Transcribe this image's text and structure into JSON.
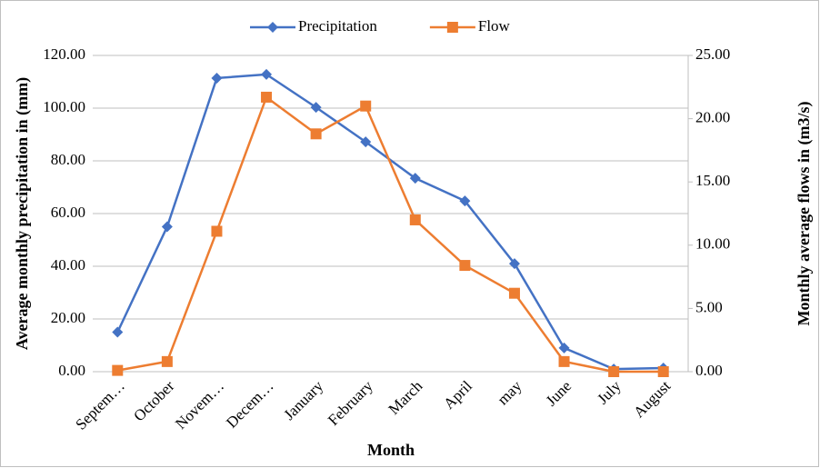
{
  "chart_data": {
    "type": "line",
    "xlabel": "Month",
    "ylabel": "Average monthly precipitation in (mm)",
    "y2label": "Monthly average flows in (m3/s)",
    "categories": [
      "Septem…",
      "October",
      "Novem…",
      "Decem…",
      "January",
      "February",
      "March",
      "April",
      "may",
      "June",
      "July",
      "August"
    ],
    "series": [
      {
        "name": "Precipitation",
        "color": "#4472c4",
        "marker": "diamond",
        "values": [
          15,
          55,
          111.4,
          112.8,
          100.3,
          87.2,
          73.4,
          64.8,
          41,
          9,
          1,
          1.4
        ]
      },
      {
        "name": "Flow",
        "color": "#ed7d31",
        "marker": "square",
        "axis": "y2",
        "values": [
          0.1,
          0.8,
          11.1,
          21.7,
          18.8,
          21.0,
          12.0,
          8.4,
          6.2,
          0.8,
          0,
          0
        ]
      }
    ],
    "ylim": [
      0,
      120
    ],
    "yticks": [
      {
        "value": 0,
        "label": "0.00"
      },
      {
        "value": 20,
        "label": "20.00"
      },
      {
        "value": 40,
        "label": "40.00"
      },
      {
        "value": 60,
        "label": "60.00"
      },
      {
        "value": 80,
        "label": "80.00"
      },
      {
        "value": 100,
        "label": "100.00"
      },
      {
        "value": 120,
        "label": "120.00"
      }
    ],
    "y2lim": [
      0,
      25
    ],
    "y2ticks": [
      {
        "value": 0,
        "label": "0.00"
      },
      {
        "value": 5,
        "label": "5.00"
      },
      {
        "value": 10,
        "label": "10.00"
      },
      {
        "value": 15,
        "label": "15.00"
      },
      {
        "value": 20,
        "label": "20.00"
      },
      {
        "value": 25,
        "label": "25.00"
      }
    ],
    "grid": true,
    "legend": "top"
  }
}
